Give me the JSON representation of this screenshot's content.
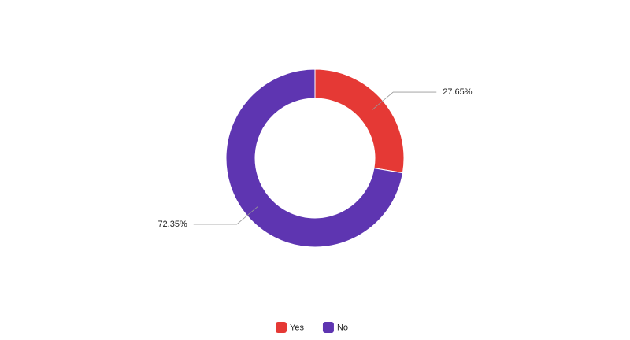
{
  "chart_data": {
    "type": "donut",
    "categories": [
      "Yes",
      "No"
    ],
    "values": [
      27.65,
      72.35
    ],
    "value_labels": [
      "27.65%",
      "72.35%"
    ],
    "colors": [
      "#e53935",
      "#5e35b1"
    ],
    "legend": "bottom"
  }
}
